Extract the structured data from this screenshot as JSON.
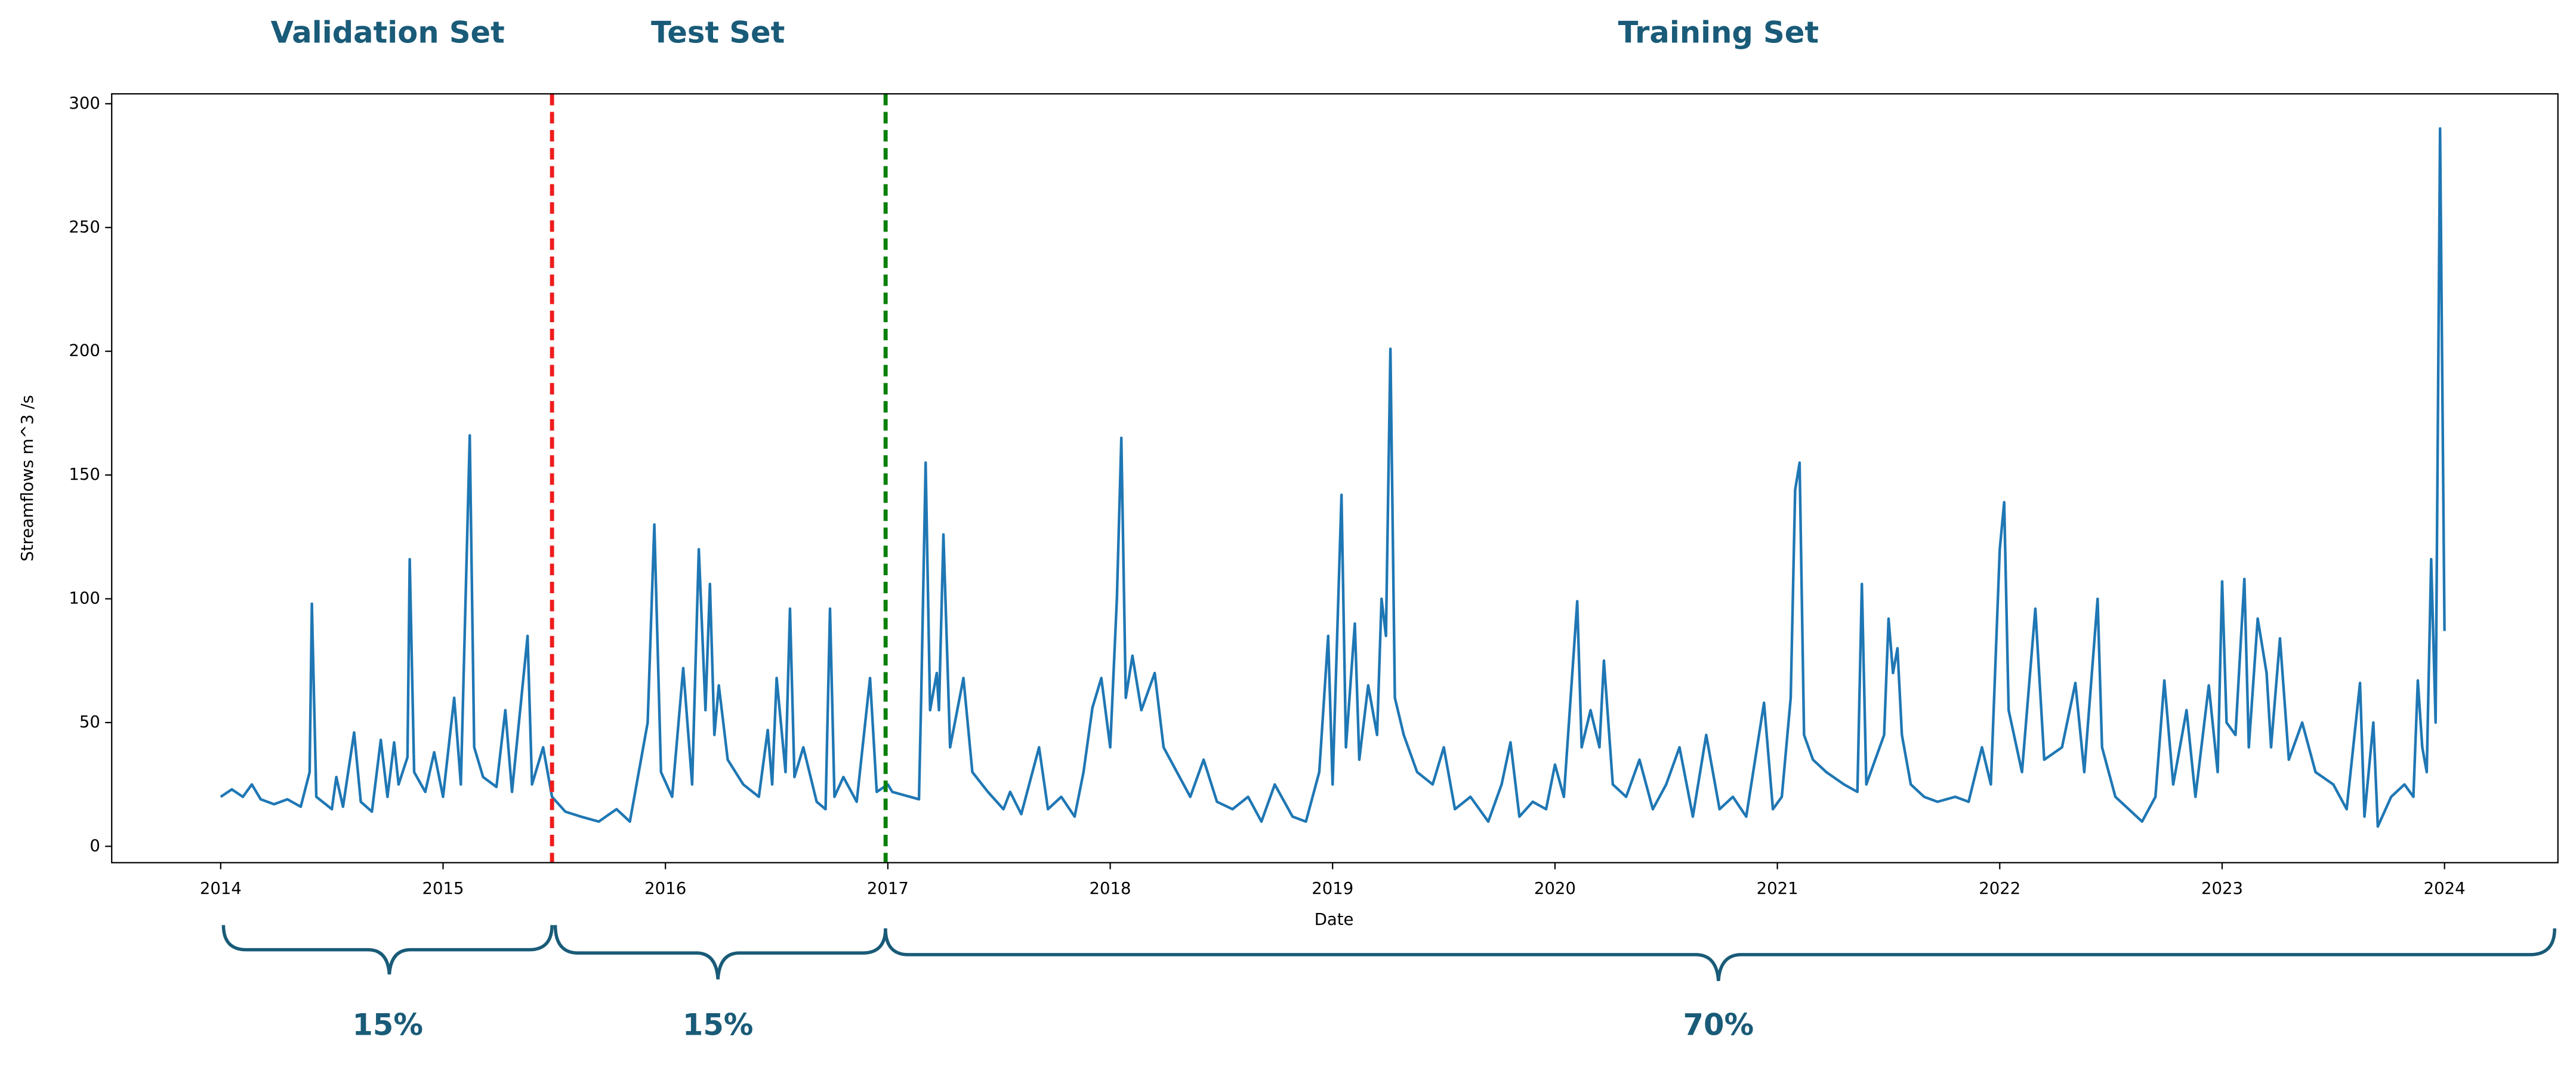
{
  "chart_data": {
    "type": "line",
    "x_label": "Date",
    "y_label": "Streamflows m^3 /s",
    "xlim": [
      2013.51,
      2024.51
    ],
    "ylim": [
      -6.6,
      304
    ],
    "xticks": [
      2014,
      2015,
      2016,
      2017,
      2018,
      2019,
      2020,
      2021,
      2022,
      2023,
      2024
    ],
    "yticks": [
      0,
      50,
      100,
      150,
      200,
      250,
      300
    ],
    "splits": [
      {
        "x": 2015.49,
        "color": "#ee1c1c"
      },
      {
        "x": 2016.99,
        "color": "#0a800a"
      }
    ],
    "set_labels": [
      "Validation Set",
      "Test Set",
      "Training Set"
    ],
    "percent_labels": [
      "15%",
      "15%",
      "70%"
    ],
    "x": [
      2014.0,
      2014.05,
      2014.1,
      2014.14,
      2014.18,
      2014.24,
      2014.3,
      2014.36,
      2014.4,
      2014.41,
      2014.43,
      2014.5,
      2014.52,
      2014.55,
      2014.6,
      2014.63,
      2014.68,
      2014.72,
      2014.75,
      2014.78,
      2014.8,
      2014.84,
      2014.85,
      2014.87,
      2014.92,
      2014.96,
      2015.0,
      2015.05,
      2015.08,
      2015.12,
      2015.14,
      2015.18,
      2015.24,
      2015.28,
      2015.31,
      2015.38,
      2015.4,
      2015.45,
      2015.49,
      2015.55,
      2015.62,
      2015.7,
      2015.78,
      2015.84,
      2015.92,
      2015.95,
      2015.98,
      2016.03,
      2016.08,
      2016.12,
      2016.15,
      2016.18,
      2016.2,
      2016.22,
      2016.24,
      2016.28,
      2016.35,
      2016.42,
      2016.46,
      2016.48,
      2016.5,
      2016.54,
      2016.56,
      2016.58,
      2016.62,
      2016.68,
      2016.72,
      2016.74,
      2016.76,
      2016.8,
      2016.86,
      2016.92,
      2016.95,
      2017.0,
      2017.02,
      2017.14,
      2017.15,
      2017.17,
      2017.19,
      2017.22,
      2017.23,
      2017.25,
      2017.28,
      2017.34,
      2017.38,
      2017.45,
      2017.52,
      2017.55,
      2017.6,
      2017.68,
      2017.72,
      2017.78,
      2017.84,
      2017.88,
      2017.92,
      2017.96,
      2018.0,
      2018.03,
      2018.05,
      2018.07,
      2018.1,
      2018.14,
      2018.2,
      2018.24,
      2018.3,
      2018.36,
      2018.42,
      2018.48,
      2018.55,
      2018.62,
      2018.68,
      2018.74,
      2018.82,
      2018.88,
      2018.94,
      2018.98,
      2019.0,
      2019.04,
      2019.06,
      2019.1,
      2019.12,
      2019.16,
      2019.2,
      2019.22,
      2019.24,
      2019.26,
      2019.28,
      2019.32,
      2019.38,
      2019.45,
      2019.5,
      2019.55,
      2019.62,
      2019.7,
      2019.76,
      2019.8,
      2019.84,
      2019.9,
      2019.96,
      2020.0,
      2020.04,
      2020.1,
      2020.12,
      2020.16,
      2020.2,
      2020.22,
      2020.26,
      2020.32,
      2020.38,
      2020.44,
      2020.5,
      2020.56,
      2020.62,
      2020.68,
      2020.74,
      2020.8,
      2020.86,
      2020.94,
      2020.98,
      2021.02,
      2021.06,
      2021.08,
      2021.1,
      2021.12,
      2021.16,
      2021.22,
      2021.3,
      2021.36,
      2021.38,
      2021.4,
      2021.48,
      2021.5,
      2021.52,
      2021.54,
      2021.56,
      2021.6,
      2021.66,
      2021.72,
      2021.8,
      2021.86,
      2021.92,
      2021.96,
      2022.0,
      2022.02,
      2022.04,
      2022.1,
      2022.16,
      2022.2,
      2022.28,
      2022.34,
      2022.38,
      2022.44,
      2022.46,
      2022.52,
      2022.58,
      2022.64,
      2022.7,
      2022.74,
      2022.78,
      2022.84,
      2022.88,
      2022.94,
      2022.98,
      2023.0,
      2023.02,
      2023.06,
      2023.1,
      2023.12,
      2023.16,
      2023.2,
      2023.22,
      2023.26,
      2023.3,
      2023.36,
      2023.42,
      2023.5,
      2023.56,
      2023.62,
      2023.64,
      2023.68,
      2023.7,
      2023.76,
      2023.82,
      2023.86,
      2023.88,
      2023.9,
      2023.92,
      2023.94,
      2023.96,
      2023.98,
      2024.0
    ],
    "series": [
      {
        "color": "#1f77b4",
        "values": [
          20,
          23,
          20,
          25,
          19,
          17,
          19,
          16,
          30,
          98,
          20,
          15,
          28,
          16,
          46,
          18,
          14,
          43,
          20,
          42,
          25,
          36,
          116,
          30,
          22,
          38,
          20,
          60,
          25,
          166,
          40,
          28,
          24,
          55,
          22,
          85,
          25,
          40,
          20,
          14,
          12,
          10,
          15,
          10,
          50,
          130,
          30,
          20,
          72,
          25,
          120,
          55,
          106,
          45,
          65,
          35,
          25,
          20,
          47,
          25,
          68,
          30,
          96,
          28,
          40,
          18,
          15,
          96,
          20,
          28,
          18,
          68,
          22,
          25,
          22,
          19,
          60,
          155,
          55,
          70,
          55,
          126,
          40,
          68,
          30,
          22,
          15,
          22,
          13,
          40,
          15,
          20,
          12,
          30,
          56,
          68,
          40,
          100,
          165,
          60,
          77,
          55,
          70,
          40,
          30,
          20,
          35,
          18,
          15,
          20,
          10,
          25,
          12,
          10,
          30,
          85,
          25,
          142,
          40,
          90,
          35,
          65,
          45,
          100,
          85,
          201,
          60,
          45,
          30,
          25,
          40,
          15,
          20,
          10,
          25,
          42,
          12,
          18,
          15,
          33,
          20,
          99,
          40,
          55,
          40,
          75,
          25,
          20,
          35,
          15,
          25,
          40,
          12,
          45,
          15,
          20,
          12,
          58,
          15,
          20,
          60,
          144,
          155,
          45,
          35,
          30,
          25,
          22,
          106,
          25,
          45,
          92,
          70,
          80,
          45,
          25,
          20,
          18,
          20,
          18,
          40,
          25,
          120,
          139,
          55,
          30,
          96,
          35,
          40,
          66,
          30,
          100,
          40,
          20,
          15,
          10,
          20,
          67,
          25,
          55,
          20,
          65,
          30,
          107,
          50,
          45,
          108,
          40,
          92,
          70,
          40,
          84,
          35,
          50,
          30,
          25,
          15,
          66,
          12,
          50,
          8,
          20,
          25,
          20,
          67,
          40,
          30,
          116,
          50,
          290,
          87
        ]
      }
    ]
  }
}
